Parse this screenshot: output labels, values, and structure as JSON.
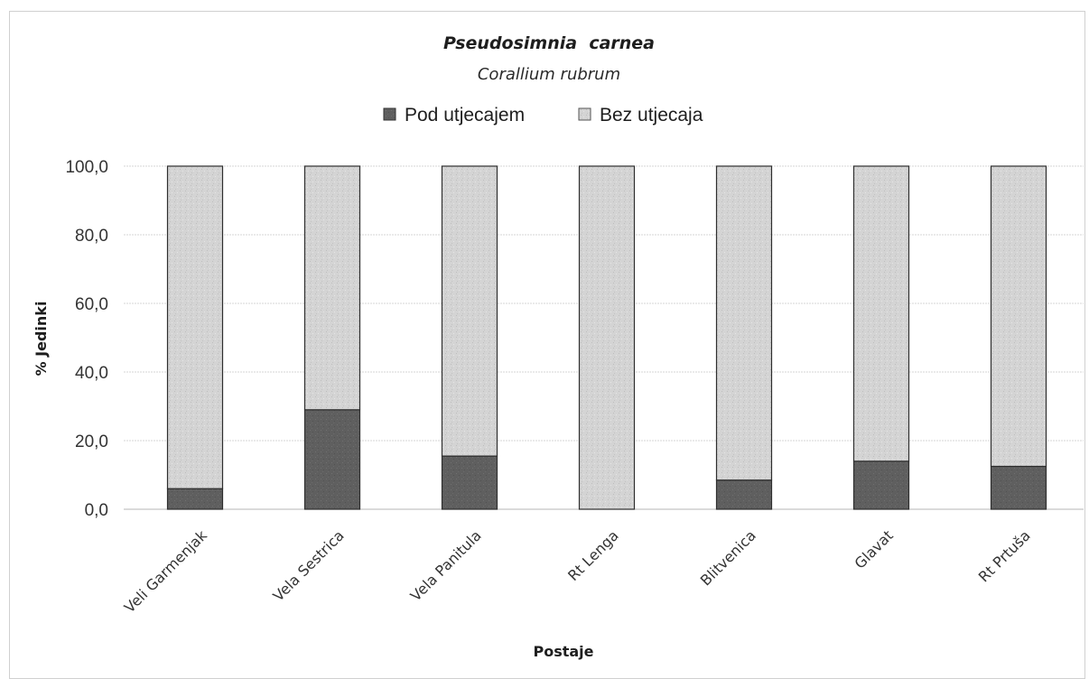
{
  "chart_data": {
    "type": "bar",
    "stacked": true,
    "title": "Pseudosimnia  carnea",
    "subtitle": "Corallium rubrum",
    "xlabel": "Postaje",
    "ylabel": "% Jedinki",
    "ylim": [
      0,
      100
    ],
    "yticks": [
      "0,0",
      "20,0",
      "40,0",
      "60,0",
      "80,0",
      "100,0"
    ],
    "grid": true,
    "legend_position": "top",
    "categories": [
      "Veli Garmenjak",
      "Vela Sestrica",
      "Vela Panitula",
      "Rt Lenga",
      "Blitvenica",
      "Glavat",
      "Rt Prtuša"
    ],
    "series": [
      {
        "name": "Pod utjecajem",
        "color": "#5f5f5f",
        "values": [
          6.0,
          29.0,
          15.5,
          0.0,
          8.5,
          14.0,
          12.5
        ]
      },
      {
        "name": "Bez utjecaja",
        "color": "#d4d4d4",
        "values": [
          94.0,
          71.0,
          84.5,
          100.0,
          91.5,
          86.0,
          87.5
        ]
      }
    ]
  }
}
